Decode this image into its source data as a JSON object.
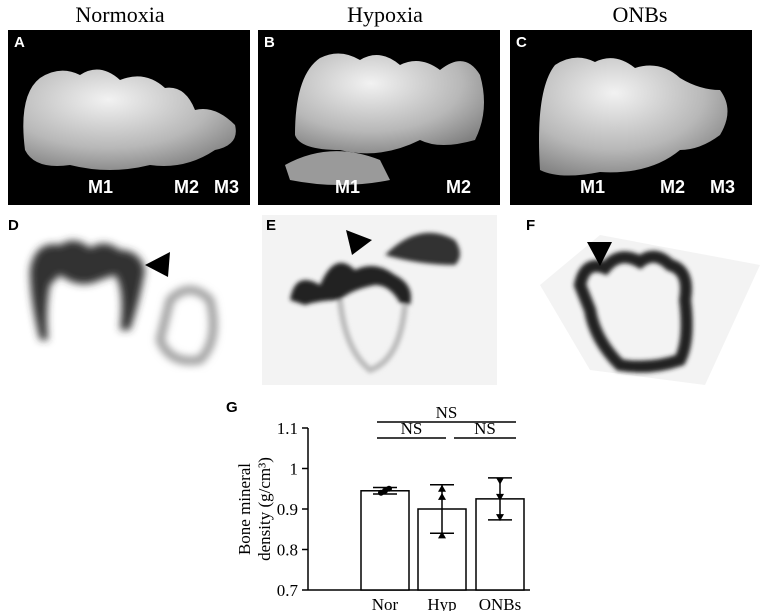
{
  "columns": [
    "Normoxia",
    "Hypoxia",
    "ONBs"
  ],
  "panels": [
    {
      "label": "A",
      "markers": [
        "M1",
        "M2",
        "M3"
      ]
    },
    {
      "label": "B",
      "markers": [
        "M1",
        "M2"
      ]
    },
    {
      "label": "C",
      "markers": [
        "M1",
        "M2",
        "M3"
      ]
    },
    {
      "label": "D"
    },
    {
      "label": "E"
    },
    {
      "label": "F"
    },
    {
      "label": "G"
    }
  ],
  "chart_data": {
    "type": "bar",
    "ylabel": [
      "Bone mineral",
      "density (g/cm³)"
    ],
    "categories": [
      "Nor",
      "Hyp",
      "ONBs"
    ],
    "values": [
      0.945,
      0.9,
      0.925
    ],
    "errors": [
      0.008,
      0.06,
      0.052
    ],
    "points": [
      [
        0.94,
        0.945,
        0.95
      ],
      [
        0.95,
        0.93,
        0.835
      ],
      [
        0.97,
        0.93,
        0.88
      ]
    ],
    "color": "#ffffff",
    "ylim": [
      0.7,
      1.1
    ],
    "yticks": [
      0.7,
      0.8,
      0.9,
      1,
      1.1
    ],
    "annotations": [
      "NS",
      "NS",
      "NS"
    ]
  }
}
